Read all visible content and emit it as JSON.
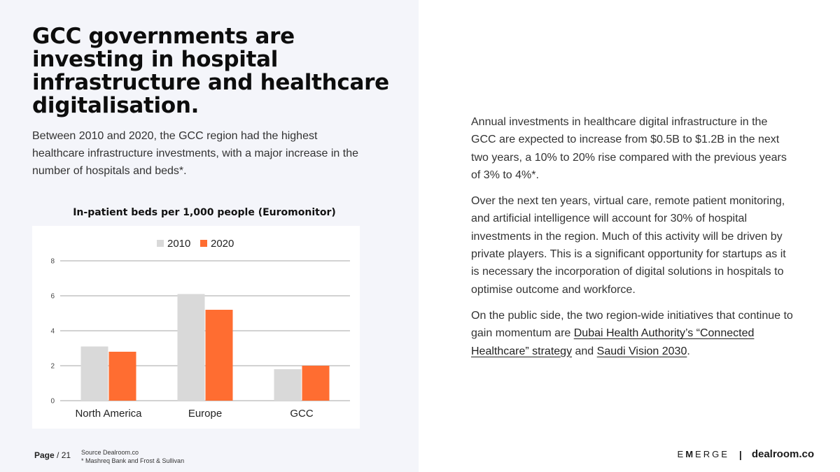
{
  "headline": "GCC governments are investing in hospital infrastructure and healthcare digitalisation.",
  "intro": "Between 2010 and 2020, the GCC region had the highest healthcare infrastructure investments, with a major increase in the number of hospitals and beds*.",
  "colors": {
    "series_2010": "#d9d9d9",
    "series_2020": "#ff6d31",
    "grid": "#b7b7b7"
  },
  "chart_data": {
    "type": "bar",
    "title": "In-patient beds per 1,000 people (Euromonitor)",
    "categories": [
      "North America",
      "Europe",
      "GCC"
    ],
    "series": [
      {
        "name": "2010",
        "values": [
          3.1,
          6.1,
          1.8
        ]
      },
      {
        "name": "2020",
        "values": [
          2.8,
          5.2,
          2.0
        ]
      }
    ],
    "ylim": [
      0,
      8
    ],
    "yticks": [
      "0",
      "2",
      "4",
      "6",
      "8"
    ],
    "legend": "top",
    "grid": true
  },
  "right": {
    "p1": "Annual investments in healthcare digital infrastructure in the GCC are expected to increase from $0.5B to $1.2B in the next two years, a 10% to 20% rise compared with the previous years of 3% to 4%*.",
    "p2": "Over the next ten years, virtual care, remote patient monitoring, and artificial intelligence will account for 30% of hospital investments in the region. Much of this activity will be driven by private players. This is a significant opportunity for startups as it is necessary the incorporation of  digital solutions in hospitals to optimise outcome and workforce.",
    "p3_pre": "On the public side, the two region-wide initiatives that continue to gain momentum are ",
    "link1": "Dubai Health Authority’s “Connected Healthcare” strategy",
    "p3_mid": " and ",
    "link2": "Saudi Vision 2030",
    "p3_end": "."
  },
  "footer": {
    "page_label": "Page",
    "page_number": "/ 21",
    "source_line1": "Source Dealroom.co",
    "source_line2": "* Mashreq Bank and Frost & Sullivan",
    "brand_emerge_1": "E",
    "brand_emerge_2": "M",
    "brand_emerge_3": "ERGE",
    "separator": "|",
    "brand_dealroom": "dealroom.co"
  }
}
